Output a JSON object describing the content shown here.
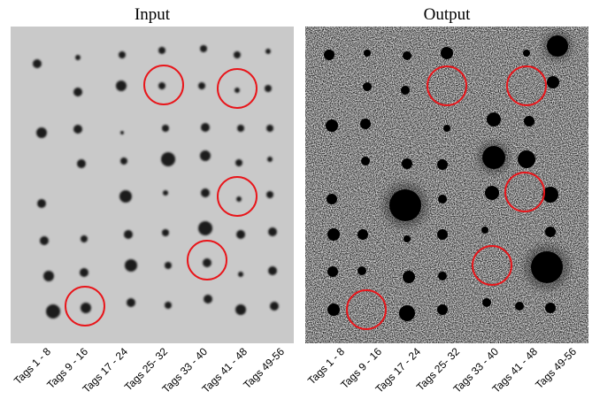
{
  "panels": [
    {
      "title": "Input",
      "labels": [
        "Tags 1 - 8",
        "Tags 9 - 16",
        "Tags 17 - 24",
        "Tags 25- 32",
        "Tags 33 - 40",
        "Tags 41 - 48",
        "Tags 49-56"
      ]
    },
    {
      "title": "Output",
      "labels": [
        "Tags 1 - 8",
        "Tags 9 - 16",
        "Tags 17 - 24",
        "Tags 25- 32",
        "Tags 33 - 40",
        "Tags 41 - 48",
        "Tags 49-56"
      ]
    }
  ]
}
